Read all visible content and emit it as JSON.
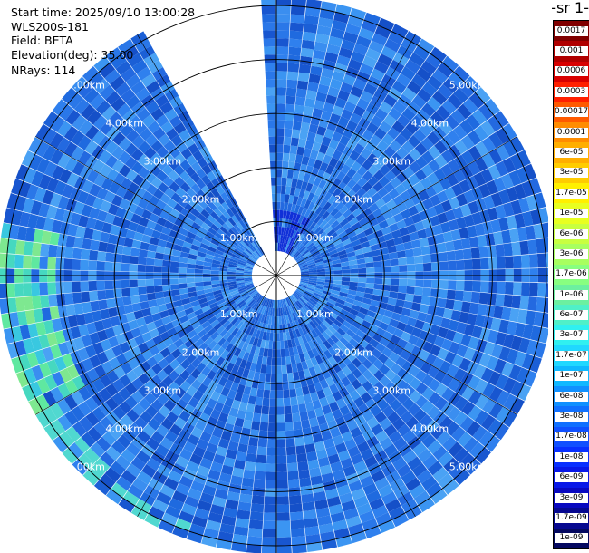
{
  "header": {
    "start_time": "Start time: 2025/09/10 13:00:28",
    "instrument": "WLS200s-181",
    "field": "Field: BETA",
    "elevation": "Elevation(deg): 35.00",
    "nrays": "NRays: 114"
  },
  "colorbar": {
    "title": "-1 sr-",
    "labels": [
      "0.0017",
      "0.001",
      "0.0006",
      "0.0003",
      "0.00017",
      "0.0001",
      "6e-05",
      "3e-05",
      "1.7e-05",
      "1e-05",
      "6e-06",
      "3e-06",
      "1.7e-06",
      "1e-06",
      "6e-07",
      "3e-07",
      "1.7e-07",
      "1e-07",
      "6e-08",
      "3e-08",
      "1.7e-08",
      "1e-08",
      "6e-09",
      "3e-09",
      "1.7e-09",
      "1e-09"
    ],
    "colors": [
      "#800000",
      "#b00000",
      "#d80000",
      "#ff2000",
      "#ff5a00",
      "#ff8c00",
      "#ffae00",
      "#ffcc00",
      "#fff000",
      "#e8ff20",
      "#c8ff40",
      "#a8ff60",
      "#88ff80",
      "#6cf0a0",
      "#50f0c8",
      "#30f0f0",
      "#20d8ff",
      "#10b8ff",
      "#1090ff",
      "#1070ff",
      "#1050ff",
      "#0830ff",
      "#0818e8",
      "#0808c0",
      "#060890",
      "#040860"
    ]
  },
  "chart_data": {
    "type": "heatmap",
    "projection": "polar (PPI scan)",
    "field": "BETA",
    "elevation_deg": 35.0,
    "n_rays": 114,
    "range_rings_km": [
      1.0,
      2.0,
      3.0,
      4.0,
      5.0
    ],
    "ring_labels": [
      "1.00km",
      "2.00km",
      "3.00km",
      "4.00km",
      "5.00km"
    ],
    "max_range_km": 5.15,
    "missing_sector_deg": [
      330,
      358
    ],
    "colorbar_ticks": [
      0.0017,
      0.001,
      0.0006,
      0.0003,
      0.00017,
      0.0001,
      6e-05,
      3e-05,
      1.7e-05,
      1e-05,
      6e-06,
      3e-06,
      1.7e-06,
      1e-06,
      6e-07,
      3e-07,
      1.7e-07,
      1e-07,
      6e-08,
      3e-08,
      1.7e-08,
      1e-08,
      6e-09,
      3e-09,
      1.7e-09,
      1e-09
    ],
    "dominant_range": [
      6e-08,
      1.7e-07
    ],
    "enhanced_sector_deg": [
      240,
      280
    ],
    "enhanced_range": [
      1.7e-07,
      1e-06
    ]
  }
}
